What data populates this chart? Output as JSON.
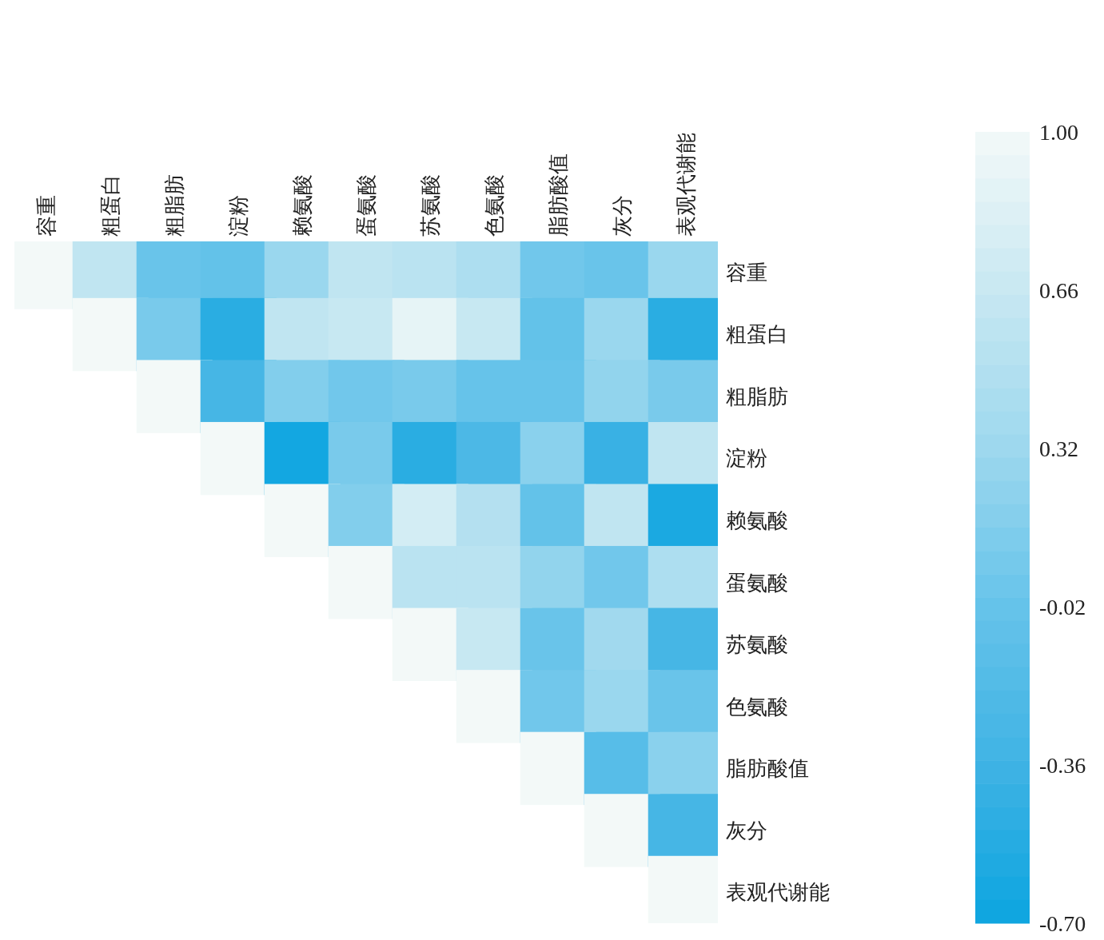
{
  "chart_data": {
    "type": "heatmap",
    "categories": [
      "容重",
      "粗蛋白",
      "粗脂肪",
      "淀粉",
      "赖氨酸",
      "蛋氨酸",
      "苏氨酸",
      "色氨酸",
      "脂肪酸值",
      "灰分",
      "表观代谢能"
    ],
    "y_categories": [
      "容重",
      "粗蛋白",
      "粗脂肪",
      "淀粉",
      "赖氨酸",
      "蛋氨酸",
      "苏氨酸",
      "色氨酸",
      "脂肪酸值",
      "灰分",
      "表观代谢能"
    ],
    "cells": [
      [
        1,
        0.6,
        0.0,
        -0.05,
        0.3,
        0.6,
        0.55,
        0.45,
        0.05,
        0.0,
        0.3
      ],
      [
        null,
        1,
        0.1,
        -0.5,
        0.6,
        0.65,
        0.9,
        0.65,
        -0.05,
        0.3,
        -0.5
      ],
      [
        null,
        null,
        1,
        -0.3,
        0.15,
        0.05,
        0.1,
        -0.02,
        -0.02,
        0.25,
        0.1
      ],
      [
        null,
        null,
        null,
        1,
        -0.65,
        0.1,
        -0.5,
        -0.25,
        0.2,
        -0.4,
        0.6
      ],
      [
        null,
        null,
        null,
        null,
        1,
        0.15,
        0.75,
        0.5,
        -0.05,
        0.6,
        -0.6
      ],
      [
        null,
        null,
        null,
        null,
        null,
        1,
        0.55,
        0.55,
        0.25,
        0.05,
        0.45
      ],
      [
        null,
        null,
        null,
        null,
        null,
        null,
        1,
        0.65,
        0.0,
        0.35,
        -0.3
      ],
      [
        null,
        null,
        null,
        null,
        null,
        null,
        null,
        1,
        0.05,
        0.3,
        0.0
      ],
      [
        null,
        null,
        null,
        null,
        null,
        null,
        null,
        null,
        1,
        -0.15,
        0.2
      ],
      [
        null,
        null,
        null,
        null,
        null,
        null,
        null,
        null,
        null,
        1,
        -0.3
      ],
      [
        null,
        null,
        null,
        null,
        null,
        null,
        null,
        null,
        null,
        null,
        1
      ]
    ],
    "clim": [
      -0.7,
      1
    ],
    "cticks": [
      {
        "value": 1,
        "label": "1.00"
      },
      {
        "value": 0.66,
        "label": "0.66"
      },
      {
        "value": 0.32,
        "label": "0.32"
      },
      {
        "value": -0.02,
        "label": "-0.02"
      },
      {
        "value": -0.36,
        "label": "-0.36"
      },
      {
        "value": -0.7,
        "label": "-0.70"
      }
    ]
  }
}
